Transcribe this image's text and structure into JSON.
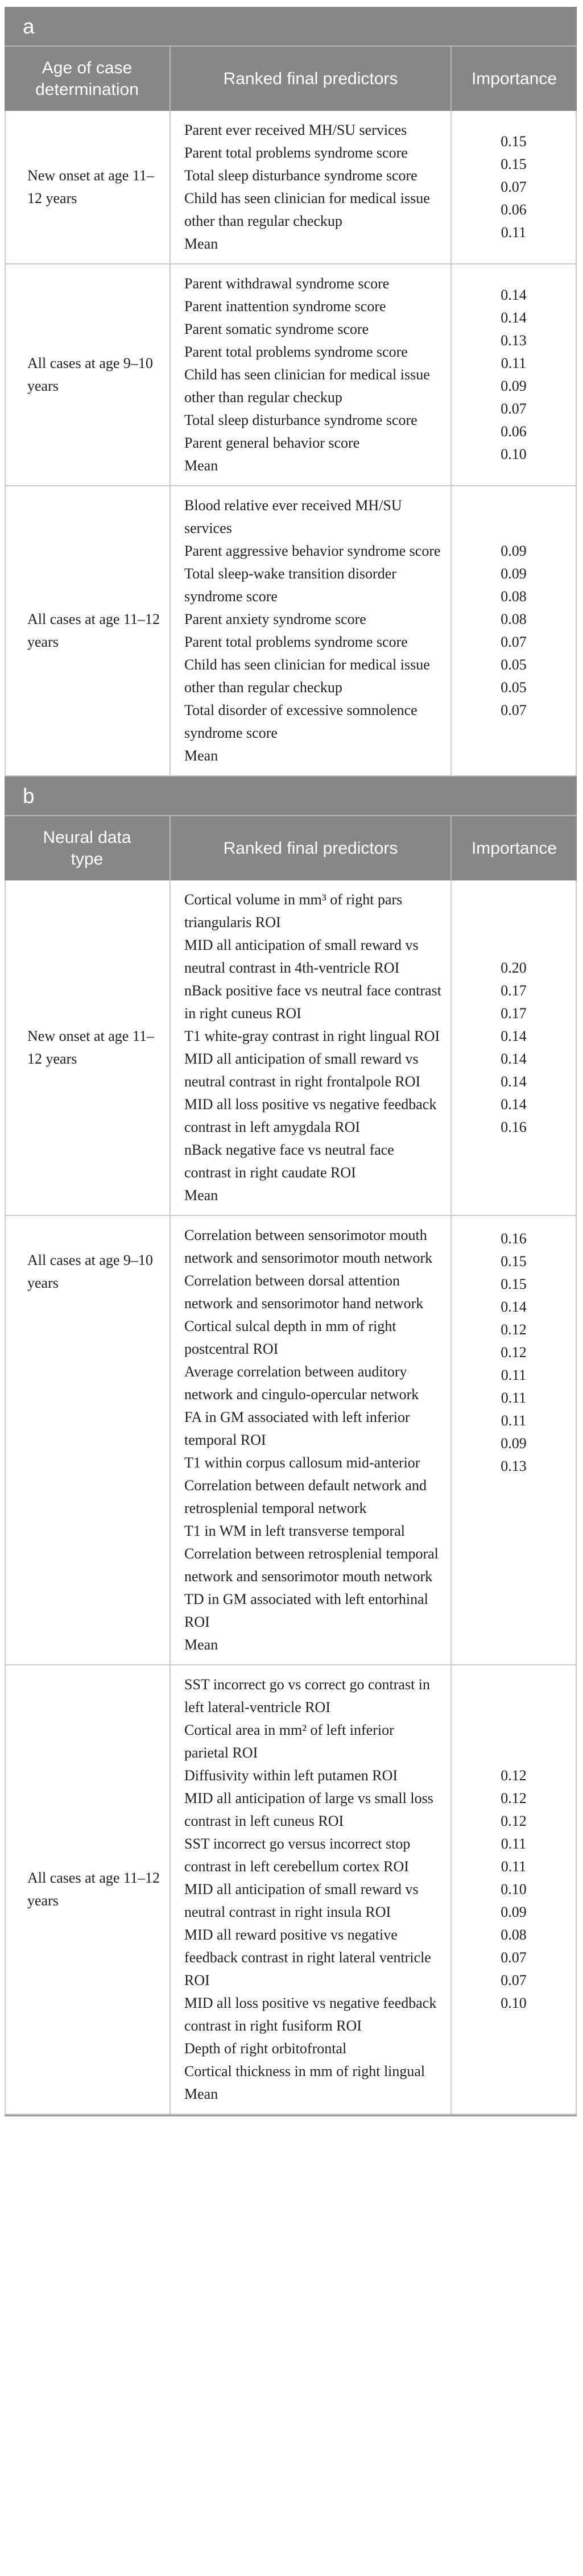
{
  "colors": {
    "header_bg": "#858789",
    "header_fg": "#ffffff",
    "separator": "#b7b9b9",
    "grid": "#c9cbcb",
    "outline": "#9b9ea0",
    "ink": "#1f1f1f",
    "page_bg": "#ffffff"
  },
  "tables": [
    {
      "band_label": "a",
      "columns": [
        "Age of case determination",
        "Ranked final predictors",
        "Importance"
      ],
      "rows": [
        {
          "group": "New onset at age 11–12 years",
          "predictors": [
            "Parent ever received MH/SU services",
            "Parent total problems syndrome score",
            "Total sleep disturbance syndrome score",
            "Child has seen clinician for medical issue other than regular checkup",
            "Mean"
          ],
          "importance": [
            "0.15",
            "0.15",
            "0.07",
            "0.06",
            "0.11"
          ]
        },
        {
          "group": "All cases at age 9–10 years",
          "predictors": [
            "Parent withdrawal syndrome score",
            "Parent inattention syndrome score",
            "Parent somatic syndrome score",
            "Parent total problems syndrome score",
            "Child has seen clinician for medical issue other than regular checkup",
            "Total sleep disturbance syndrome score",
            "Parent general behavior score",
            "Mean"
          ],
          "importance": [
            "0.14",
            "0.14",
            "0.13",
            "0.11",
            "0.09",
            "0.07",
            "0.06",
            "0.10"
          ]
        },
        {
          "group": "All cases at age 11–12 years",
          "predictors": [
            "Blood relative ever received MH/SU services",
            "Parent aggressive behavior syndrome score",
            "Total sleep-wake transition disorder syndrome score",
            "Parent anxiety syndrome score",
            "Parent total problems syndrome score",
            "Child has seen clinician for medical issue other than regular checkup",
            "Total disorder of excessive somnolence syndrome score",
            "Mean"
          ],
          "importance": [
            "0.09",
            "0.09",
            "0.08",
            "0.08",
            "0.07",
            "0.05",
            "0.05",
            "0.07"
          ]
        }
      ]
    },
    {
      "band_label": "b",
      "columns": [
        "Neural data type",
        "Ranked final predictors",
        "Importance"
      ],
      "rows": [
        {
          "group": "New onset at age 11–12 years",
          "predictors": [
            "Cortical volume in mm³ of right pars triangularis ROI",
            "MID all anticipation of small reward vs neutral contrast in 4th-ventricle ROI",
            "nBack positive face vs neutral face contrast in right cuneus ROI",
            "T1 white-gray contrast in right lingual ROI",
            "MID all anticipation of small reward vs neutral contrast in right frontalpole ROI",
            "MID all loss positive vs negative feedback contrast in left amygdala ROI",
            "nBack negative face vs neutral face contrast in right caudate ROI",
            "Mean"
          ],
          "importance": [
            "0.20",
            "0.17",
            "0.17",
            "0.14",
            "0.14",
            "0.14",
            "0.14",
            "0.16"
          ]
        },
        {
          "group": "All cases at age 9–10 years",
          "predictors": [
            "Correlation between sensorimotor mouth network and sensorimotor mouth network",
            "Correlation between dorsal attention network and sensorimotor hand network",
            "Cortical sulcal depth in mm of right postcentral ROI",
            "Average correlation between auditory network and cingulo-opercular network",
            "FA in GM associated with left inferior temporal ROI",
            "T1 within corpus callosum mid-anterior",
            "Correlation between default network and retrosplenial temporal network",
            "T1 in WM in left transverse temporal",
            "Correlation between retrosplenial temporal network and sensorimotor mouth network",
            "TD in GM associated with left entorhinal ROI",
            "Mean"
          ],
          "importance": [
            "0.16",
            "0.15",
            "0.15",
            "0.14",
            "0.12",
            "0.12",
            "0.11",
            "0.11",
            "0.11",
            "0.09",
            "0.13"
          ]
        },
        {
          "group": "All cases at age 11–12 years",
          "predictors": [
            "SST incorrect go vs correct go contrast in left lateral-ventricle ROI",
            "Cortical area in mm² of left inferior parietal ROI",
            "Diffusivity within left putamen ROI",
            "MID all anticipation of large vs small loss contrast in left cuneus ROI",
            "SST incorrect go versus incorrect stop contrast in left cerebellum cortex ROI",
            "MID all anticipation of small reward vs neutral contrast in right insula ROI",
            "MID all reward positive vs negative feedback contrast in right lateral ventricle ROI",
            "MID all loss positive vs negative feedback contrast in right fusiform ROI",
            "Depth of right orbitofrontal",
            "Cortical thickness in mm of right lingual",
            "Mean"
          ],
          "importance": [
            "0.12",
            "0.12",
            "0.12",
            "0.11",
            "0.11",
            "0.10",
            "0.09",
            "0.08",
            "0.07",
            "0.07",
            "0.10"
          ]
        }
      ]
    }
  ]
}
